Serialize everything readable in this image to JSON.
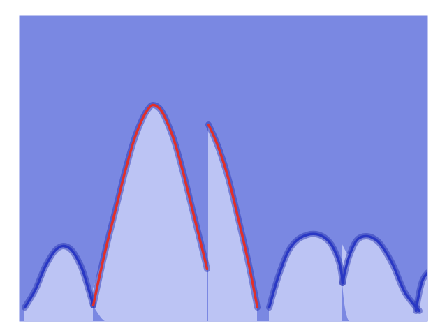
{
  "chart_data": {
    "type": "area",
    "tick_labels": false,
    "xlim": [
      0,
      585
    ],
    "ylim": [
      0,
      438
    ],
    "series": [
      {
        "x": [
          8,
          23,
          38,
          53,
          63,
          73,
          88,
          98,
          106
        ],
        "values": [
          20,
          45,
          80,
          103,
          108,
          104,
          80,
          50,
          23
        ],
        "color": "#2a38c4"
      },
      {
        "x": [
          106,
          123,
          138,
          153,
          168,
          183,
          191,
          201,
          218,
          233,
          248,
          263,
          269
        ],
        "values": [
          23,
          100,
          160,
          220,
          270,
          302,
          310,
          305,
          270,
          220,
          160,
          100,
          75
        ],
        "color": "#e0302a"
      },
      {
        "x": [
          271,
          283,
          298,
          313,
          328,
          341
        ],
        "values": [
          282,
          255,
          210,
          150,
          85,
          20
        ],
        "color": "#e0302a"
      },
      {
        "x": [
          358,
          373,
          388,
          403,
          425,
          443,
          458,
          463
        ],
        "values": [
          20,
          70,
          105,
          120,
          125,
          115,
          85,
          55
        ],
        "color": "#2a38c4"
      },
      {
        "x": [
          463,
          473,
          485,
          498,
          513,
          533,
          553,
          573
        ],
        "values": [
          55,
          95,
          118,
          122,
          115,
          85,
          40,
          15
        ],
        "color": "#2a38c4"
      },
      {
        "x": [
          568,
          578,
          585
        ],
        "values": [
          15,
          60,
          70
        ],
        "color": "#2a38c4"
      }
    ]
  }
}
